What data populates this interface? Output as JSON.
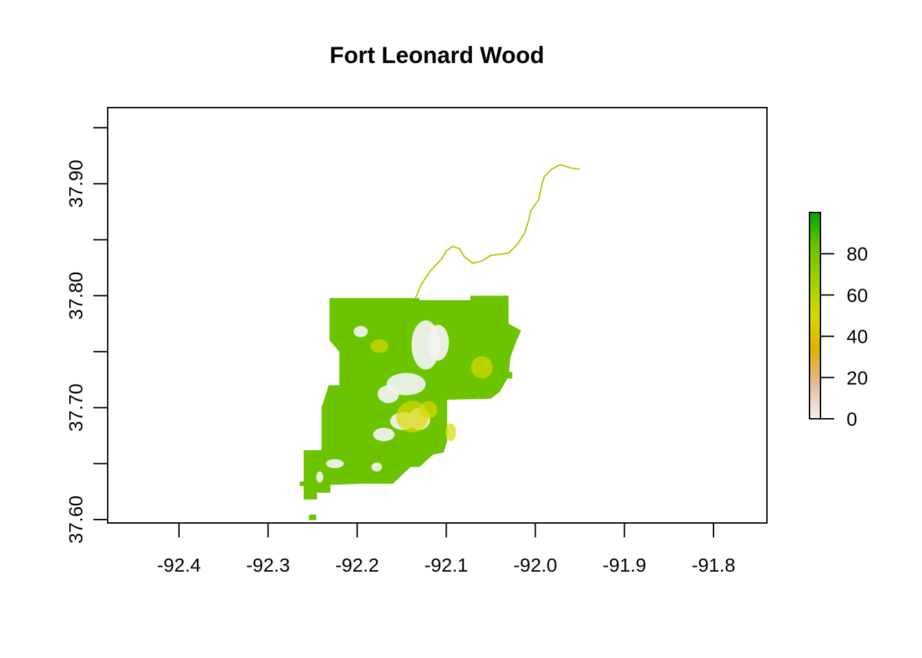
{
  "chart_data": {
    "type": "heatmap",
    "title": "Fort Leonard Wood",
    "xlabel": "",
    "ylabel": "",
    "xlim": [
      -92.48,
      -91.74
    ],
    "ylim": [
      37.597,
      37.968
    ],
    "x_ticks": [
      -92.4,
      -92.3,
      -92.2,
      -92.1,
      -92.0,
      -91.9,
      -91.8
    ],
    "x_tick_labels": [
      "-92.4",
      "-92.3",
      "-92.2",
      "-92.1",
      "-92.0",
      "-91.9",
      "-91.8"
    ],
    "y_ticks": [
      37.6,
      37.65,
      37.7,
      37.75,
      37.8,
      37.85,
      37.9,
      37.95
    ],
    "y_tick_labels": [
      {
        "value": 37.6,
        "label": "37.60"
      },
      {
        "value": 37.7,
        "label": "37.70"
      },
      {
        "value": 37.8,
        "label": "37.80"
      },
      {
        "value": 37.9,
        "label": "37.90"
      }
    ],
    "legend": {
      "placement": "right",
      "range": [
        0,
        100
      ],
      "ticks": [
        {
          "value": 0,
          "label": "0"
        },
        {
          "value": 20,
          "label": "20"
        },
        {
          "value": 40,
          "label": "40"
        },
        {
          "value": 60,
          "label": "60"
        },
        {
          "value": 80,
          "label": "80"
        }
      ],
      "colors": [
        "#f2f2f2",
        "#e8b89a",
        "#e0b000",
        "#d8d800",
        "#9ed000",
        "#6cc400",
        "#00a600"
      ]
    },
    "dominant_value": 80,
    "low_value_areas_value": 5,
    "region": {
      "outline": [
        [
          -92.231,
          37.798
        ],
        [
          -92.13,
          37.798
        ],
        [
          -92.13,
          37.796
        ],
        [
          -92.073,
          37.796
        ],
        [
          -92.073,
          37.8
        ],
        [
          -92.03,
          37.8
        ],
        [
          -92.03,
          37.775
        ],
        [
          -92.016,
          37.769
        ],
        [
          -92.022,
          37.758
        ],
        [
          -92.028,
          37.745
        ],
        [
          -92.03,
          37.728
        ],
        [
          -92.04,
          37.714
        ],
        [
          -92.05,
          37.708
        ],
        [
          -92.099,
          37.707
        ],
        [
          -92.099,
          37.67
        ],
        [
          -92.103,
          37.66
        ],
        [
          -92.115,
          37.658
        ],
        [
          -92.13,
          37.647
        ],
        [
          -92.14,
          37.647
        ],
        [
          -92.148,
          37.641
        ],
        [
          -92.16,
          37.632
        ],
        [
          -92.195,
          37.632
        ],
        [
          -92.23,
          37.631
        ],
        [
          -92.23,
          37.624
        ],
        [
          -92.245,
          37.624
        ],
        [
          -92.245,
          37.618
        ],
        [
          -92.26,
          37.618
        ],
        [
          -92.26,
          37.662
        ],
        [
          -92.24,
          37.662
        ],
        [
          -92.24,
          37.7
        ],
        [
          -92.232,
          37.72
        ],
        [
          -92.22,
          37.72
        ],
        [
          -92.22,
          37.75
        ],
        [
          -92.231,
          37.76
        ]
      ],
      "outliers": [
        {
          "lon": -92.03,
          "lat": 37.729,
          "w": 0.008,
          "h": 0.006
        },
        {
          "lon": -92.262,
          "lat": 37.632,
          "w": 0.005,
          "h": 0.004
        },
        {
          "lon": -92.25,
          "lat": 37.602,
          "w": 0.008,
          "h": 0.005
        }
      ],
      "river": [
        [
          -92.135,
          37.797
        ],
        [
          -92.128,
          37.81
        ],
        [
          -92.118,
          37.822
        ],
        [
          -92.105,
          37.833
        ],
        [
          -92.1,
          37.84
        ],
        [
          -92.093,
          37.844
        ],
        [
          -92.085,
          37.842
        ],
        [
          -92.08,
          37.835
        ],
        [
          -92.07,
          37.829
        ],
        [
          -92.06,
          37.831
        ],
        [
          -92.05,
          37.836
        ],
        [
          -92.04,
          37.837
        ],
        [
          -92.03,
          37.838
        ],
        [
          -92.02,
          37.846
        ],
        [
          -92.012,
          37.856
        ],
        [
          -92.008,
          37.866
        ],
        [
          -92.005,
          37.876
        ],
        [
          -91.996,
          37.886
        ],
        [
          -91.993,
          37.898
        ],
        [
          -91.99,
          37.906
        ],
        [
          -91.982,
          37.913
        ],
        [
          -91.972,
          37.917
        ],
        [
          -91.96,
          37.914
        ],
        [
          -91.95,
          37.913
        ]
      ],
      "low_areas": [
        {
          "lon": -92.123,
          "lat": 37.756,
          "rx": 0.016,
          "ry": 0.022
        },
        {
          "lon": -92.109,
          "lat": 37.758,
          "rx": 0.012,
          "ry": 0.016
        },
        {
          "lon": -92.145,
          "lat": 37.721,
          "rx": 0.022,
          "ry": 0.01
        },
        {
          "lon": -92.165,
          "lat": 37.712,
          "rx": 0.012,
          "ry": 0.008
        },
        {
          "lon": -92.148,
          "lat": 37.688,
          "rx": 0.015,
          "ry": 0.008
        },
        {
          "lon": -92.17,
          "lat": 37.676,
          "rx": 0.012,
          "ry": 0.006
        },
        {
          "lon": -92.13,
          "lat": 37.69,
          "rx": 0.012,
          "ry": 0.01
        },
        {
          "lon": -92.196,
          "lat": 37.768,
          "rx": 0.008,
          "ry": 0.005
        },
        {
          "lon": -92.225,
          "lat": 37.65,
          "rx": 0.01,
          "ry": 0.004
        },
        {
          "lon": -92.242,
          "lat": 37.638,
          "rx": 0.004,
          "ry": 0.005
        },
        {
          "lon": -92.178,
          "lat": 37.647,
          "rx": 0.006,
          "ry": 0.004
        }
      ],
      "mid_areas": [
        {
          "lon": -92.138,
          "lat": 37.692,
          "rx": 0.018,
          "ry": 0.014
        },
        {
          "lon": -92.12,
          "lat": 37.698,
          "rx": 0.01,
          "ry": 0.008
        },
        {
          "lon": -92.06,
          "lat": 37.736,
          "rx": 0.012,
          "ry": 0.01
        },
        {
          "lon": -92.175,
          "lat": 37.755,
          "rx": 0.01,
          "ry": 0.006
        },
        {
          "lon": -92.095,
          "lat": 37.678,
          "rx": 0.006,
          "ry": 0.008
        }
      ]
    }
  }
}
